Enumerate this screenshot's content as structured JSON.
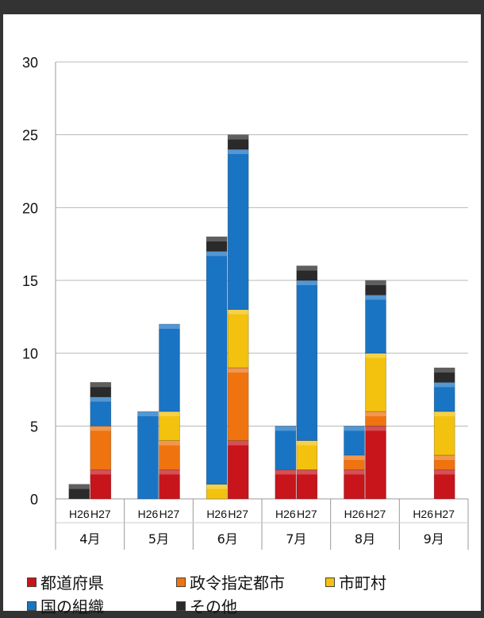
{
  "chart_data": {
    "type": "bar",
    "stacked": true,
    "title": "",
    "xlabel": "",
    "ylabel": "",
    "ylim": [
      0,
      30
    ],
    "yticks": [
      0,
      5,
      10,
      15,
      20,
      25,
      30
    ],
    "grid": true,
    "legend_position": "bottom",
    "groups": [
      "4月",
      "5月",
      "6月",
      "7月",
      "8月",
      "9月"
    ],
    "sub_categories": [
      "H26",
      "H27"
    ],
    "categories": [
      "H26",
      "H27",
      "H26",
      "H27",
      "H26",
      "H27",
      "H26",
      "H27",
      "H26",
      "H27",
      "H26",
      "H27"
    ],
    "series": [
      {
        "name": "都道府県",
        "color": "#c8141b",
        "values": [
          0,
          2,
          0,
          2,
          0,
          4,
          2,
          2,
          2,
          5,
          0,
          2
        ]
      },
      {
        "name": "政令指定都市",
        "color": "#ef7410",
        "values": [
          0,
          3,
          0,
          2,
          0,
          5,
          0,
          0,
          1,
          1,
          0,
          1
        ]
      },
      {
        "name": "市町村",
        "color": "#f2c20f",
        "values": [
          0,
          0,
          0,
          2,
          1,
          4,
          0,
          2,
          0,
          4,
          0,
          3
        ]
      },
      {
        "name": "国の組織",
        "color": "#1a74c4",
        "values": [
          0,
          2,
          6,
          6,
          16,
          11,
          3,
          11,
          2,
          4,
          0,
          2
        ]
      },
      {
        "name": "その他",
        "color": "#2a2a2a",
        "values": [
          1,
          1,
          0,
          0,
          1,
          1,
          0,
          1,
          0,
          1,
          0,
          1
        ]
      }
    ]
  }
}
